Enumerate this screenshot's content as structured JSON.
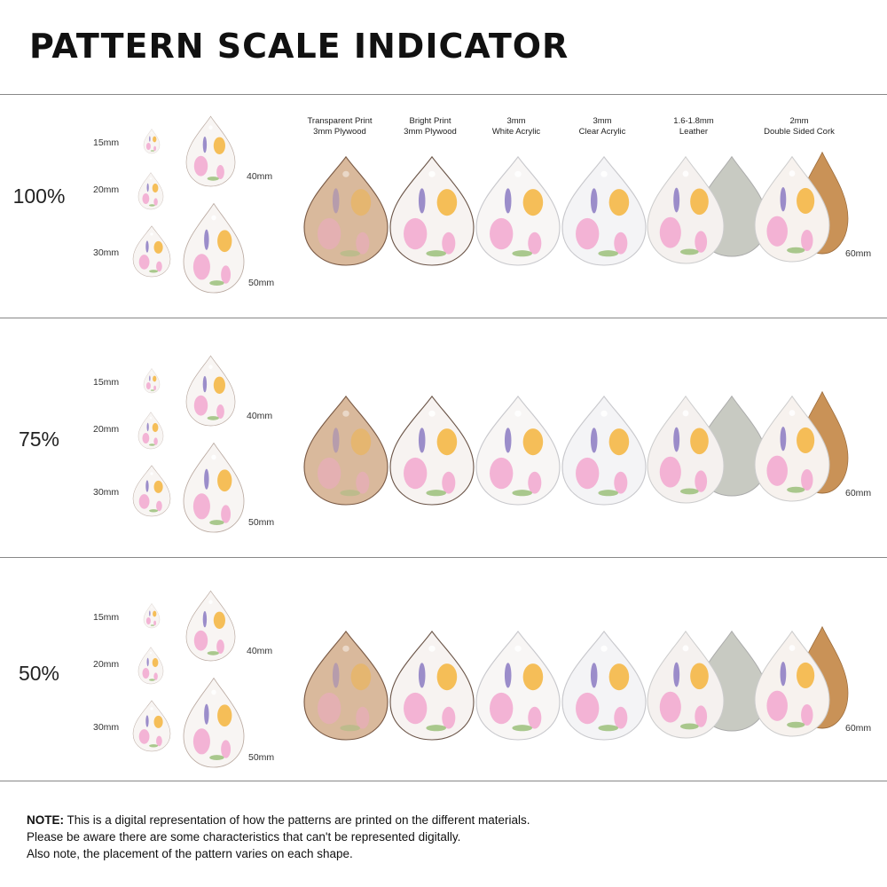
{
  "title": "PATTERN SCALE INDICATOR",
  "materials": [
    {
      "line1": "Transparent Print",
      "line2": "3mm Plywood",
      "color": "#d9b99c"
    },
    {
      "line1": "Bright Print",
      "line2": "3mm Plywood",
      "color": "#f7f3f1"
    },
    {
      "line1": "3mm",
      "line2": "White Acrylic",
      "color": "#f8f6f5"
    },
    {
      "line1": "3mm",
      "line2": "Clear Acrylic",
      "color": "#f4f4f6"
    },
    {
      "line1": "1.6-1.8mm",
      "line2": "Leather",
      "color": "#f5f1ef",
      "back_color": "#c8cac2"
    },
    {
      "line1": "2mm",
      "line2": "Double Sided Cork",
      "color": "#f7f2ee",
      "back_color": "#c99257"
    }
  ],
  "sections": [
    {
      "scale": "100%"
    },
    {
      "scale": "75%"
    },
    {
      "scale": "50%"
    }
  ],
  "sizes": [
    "15mm",
    "20mm",
    "30mm",
    "40mm",
    "50mm"
  ],
  "large_size": "60mm",
  "pattern_colors": {
    "pink": "#f2a7cf",
    "orange": "#f5b43c",
    "purple": "#8b7ac2",
    "green": "#9bbf7a"
  },
  "note": {
    "label": "NOTE:",
    "line1": " This is a digital representation of how the patterns are printed on the different materials.",
    "line2": "Please be aware there are some characteristics that can't be represented digitally.",
    "line3": "Also note, the placement of the pattern varies on each shape."
  }
}
